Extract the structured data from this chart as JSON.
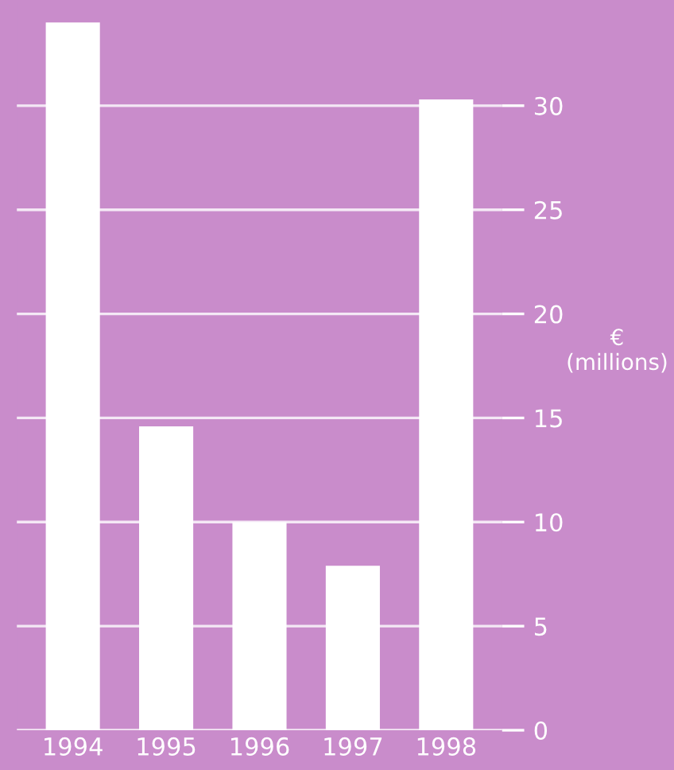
{
  "chart_data": {
    "type": "bar",
    "categories": [
      "1994",
      "1995",
      "1996",
      "1997",
      "1998"
    ],
    "values": [
      34,
      14.6,
      10,
      7.9,
      30.3
    ],
    "color": "#ffffff",
    "ylabel": "€\n(millions)",
    "ylim": [
      0,
      35
    ],
    "yticks": [
      0,
      5,
      10,
      15,
      20,
      25,
      30
    ],
    "grid": "y"
  }
}
